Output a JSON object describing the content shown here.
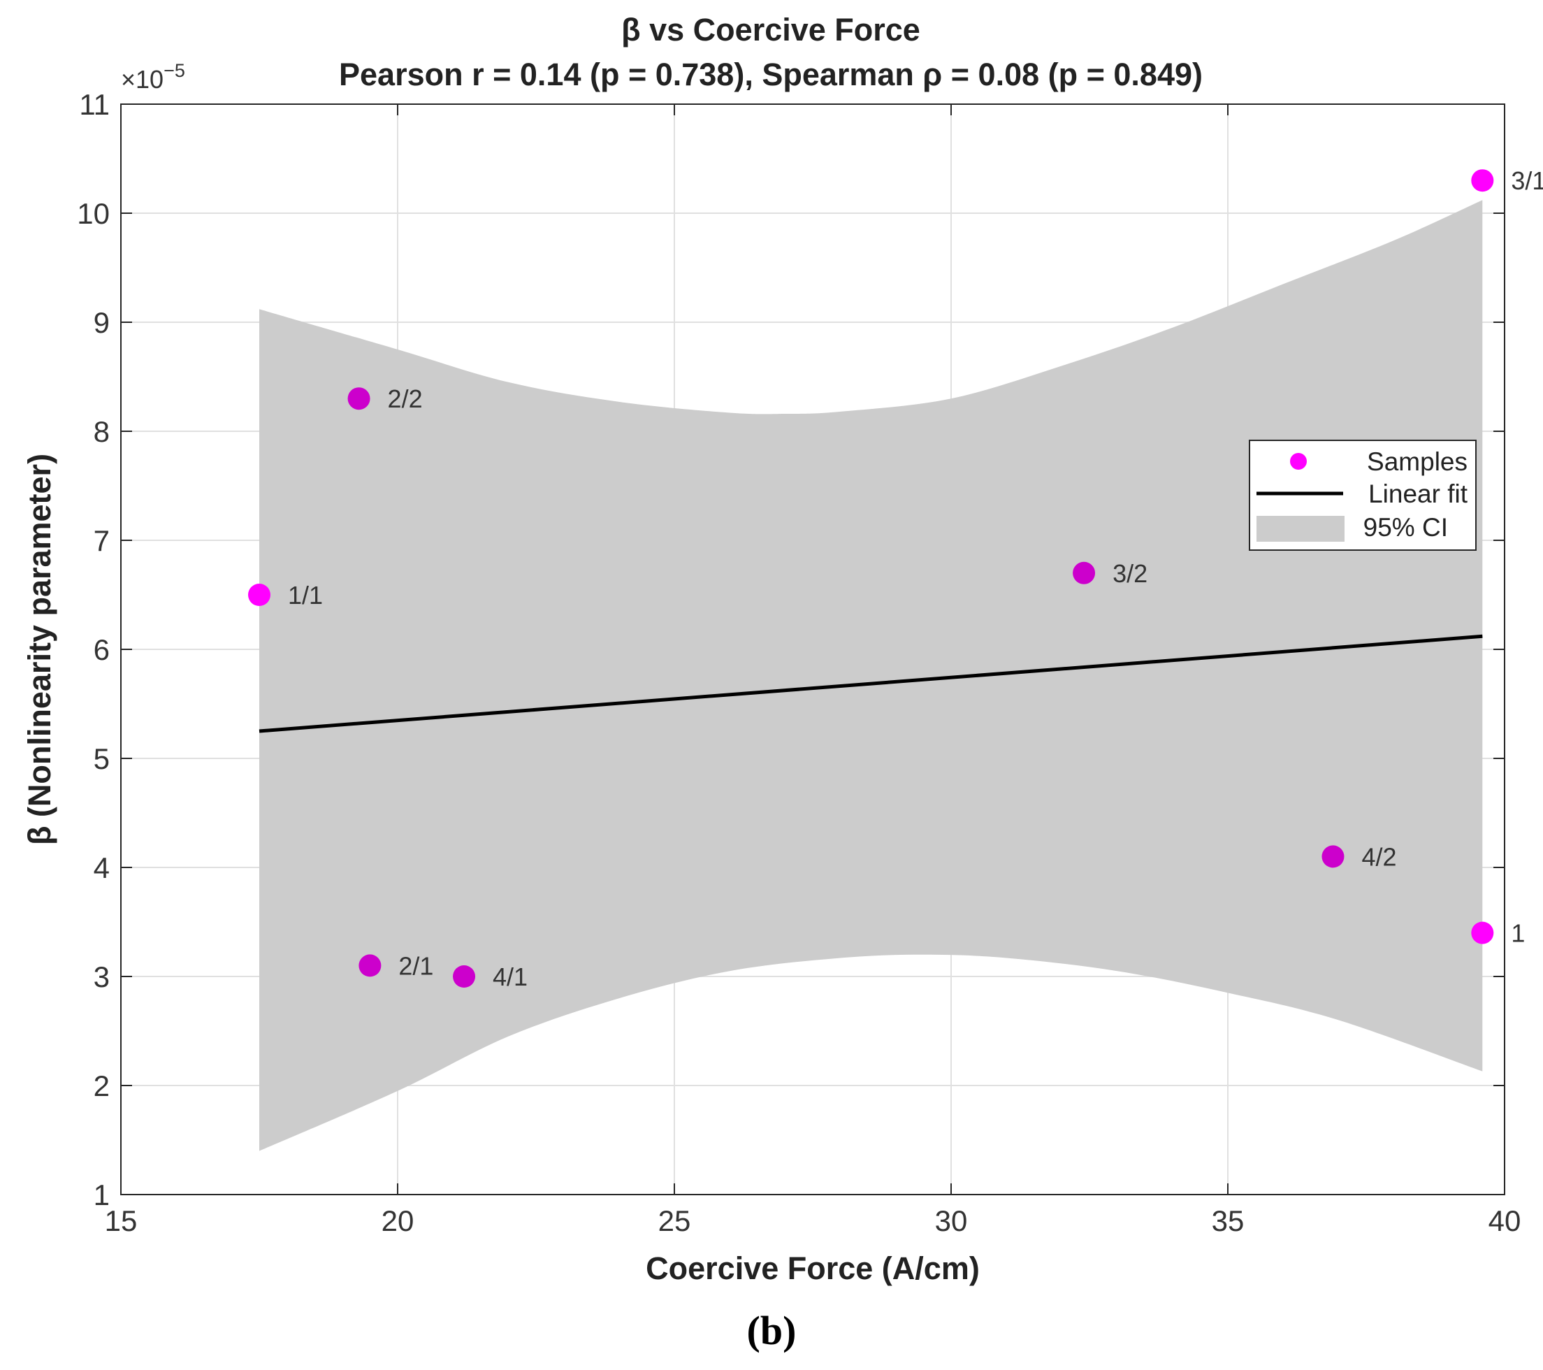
{
  "chart_data": {
    "type": "scatter",
    "title": "β  vs  Coercive  Force",
    "subtitle": "Pearson  r  =  0.14  (p  =  0.738),  Spearman  ρ  =  0.08  (p  =  0.849)",
    "xlabel": "Coercive Force (A/cm)",
    "ylabel": "β (Nonlinearity parameter)",
    "y_multiplier": "×10",
    "y_multiplier_exp": "−5",
    "xlim": [
      15,
      40
    ],
    "ylim": [
      1,
      11
    ],
    "grid": true,
    "xticks": [
      15,
      20,
      25,
      30,
      35,
      40
    ],
    "yticks": [
      1,
      2,
      3,
      4,
      5,
      6,
      7,
      8,
      9,
      10,
      11
    ],
    "points": [
      {
        "label": "1/1",
        "x": 17.5,
        "y": 6.5
      },
      {
        "label": "2/2",
        "x": 19.3,
        "y": 8.3
      },
      {
        "label": "2/1",
        "x": 19.5,
        "y": 3.1
      },
      {
        "label": "4/1",
        "x": 21.2,
        "y": 3.0
      },
      {
        "label": "3/2",
        "x": 32.4,
        "y": 6.7
      },
      {
        "label": "4/2",
        "x": 36.9,
        "y": 4.1
      },
      {
        "label": "1",
        "x": 39.6,
        "y": 3.4
      },
      {
        "label": "3/1",
        "x": 39.6,
        "y": 10.3
      }
    ],
    "fit": {
      "x": [
        17.5,
        39.6
      ],
      "y": [
        5.25,
        6.12
      ]
    },
    "ci_upper": [
      [
        17.5,
        9.12
      ],
      [
        20,
        8.75
      ],
      [
        22,
        8.45
      ],
      [
        24,
        8.27
      ],
      [
        26,
        8.17
      ],
      [
        27,
        8.16
      ],
      [
        28,
        8.18
      ],
      [
        30,
        8.3
      ],
      [
        32,
        8.6
      ],
      [
        34,
        8.95
      ],
      [
        36,
        9.35
      ],
      [
        38,
        9.75
      ],
      [
        39.6,
        10.12
      ]
    ],
    "ci_lower": [
      [
        17.5,
        1.4
      ],
      [
        20,
        1.95
      ],
      [
        22,
        2.45
      ],
      [
        24,
        2.8
      ],
      [
        26,
        3.05
      ],
      [
        28,
        3.17
      ],
      [
        29.5,
        3.2
      ],
      [
        31,
        3.17
      ],
      [
        33,
        3.05
      ],
      [
        35,
        2.85
      ],
      [
        37,
        2.6
      ],
      [
        39.6,
        2.13
      ]
    ],
    "legend": [
      {
        "label": "Samples",
        "kind": "marker"
      },
      {
        "label": "Linear fit",
        "kind": "line"
      },
      {
        "label": "95% CI",
        "kind": "patch"
      }
    ],
    "legend_position": "right-middle",
    "colors": {
      "marker_light": "#ff00ff",
      "marker_dark": "#cc00cc",
      "fit": "#000000",
      "ci": "#cccccc",
      "grid": "#e0e0e0"
    }
  },
  "panel_label": "(b)"
}
